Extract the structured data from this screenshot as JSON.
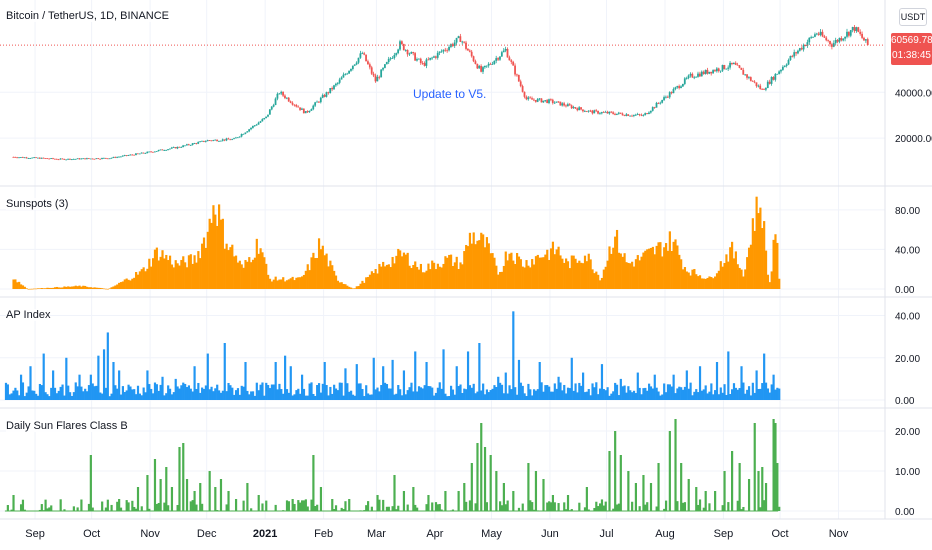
{
  "header": {
    "symbol_title": "Bitcoin / TetherUS, 1D, BINANCE"
  },
  "currency_button": "USDT",
  "price_tag": {
    "last": "60569.78",
    "countdown": "01:38:45"
  },
  "annotation": "Update to V5.",
  "colors": {
    "up": "#26a69a",
    "down": "#ef5350",
    "sunspots": "#ff9800",
    "ap": "#2196f3",
    "flares": "#4caf50",
    "grid": "#f0f3fa",
    "sep": "#e0e3eb",
    "annot": "#2962ff"
  },
  "chart_data": [
    {
      "type": "candlestick",
      "title": "Bitcoin / TetherUS, 1D, BINANCE",
      "ylim": [
        0,
        75000
      ],
      "y_ticks": [
        "40000.00",
        "20000.00"
      ],
      "last_price": 60569.78,
      "close_keypoints": [
        [
          "2020-08-20",
          11800
        ],
        [
          "2020-09-15",
          10800
        ],
        [
          "2020-10-10",
          11300
        ],
        [
          "2020-10-28",
          13500
        ],
        [
          "2020-11-15",
          16000
        ],
        [
          "2020-12-01",
          19000
        ],
        [
          "2020-12-15",
          19500
        ],
        [
          "2021-01-01",
          29000
        ],
        [
          "2021-01-08",
          40000
        ],
        [
          "2021-01-22",
          31000
        ],
        [
          "2021-02-08",
          44000
        ],
        [
          "2021-02-21",
          57000
        ],
        [
          "2021-02-28",
          45000
        ],
        [
          "2021-03-13",
          61000
        ],
        [
          "2021-03-25",
          52000
        ],
        [
          "2021-04-14",
          63500
        ],
        [
          "2021-04-25",
          49000
        ],
        [
          "2021-05-08",
          58500
        ],
        [
          "2021-05-19",
          37000
        ],
        [
          "2021-06-01",
          36000
        ],
        [
          "2021-06-22",
          31500
        ],
        [
          "2021-07-20",
          29800
        ],
        [
          "2021-08-14",
          47000
        ],
        [
          "2021-09-06",
          52000
        ],
        [
          "2021-09-21",
          41000
        ],
        [
          "2021-10-06",
          55000
        ],
        [
          "2021-10-20",
          66000
        ],
        [
          "2021-10-28",
          61000
        ],
        [
          "2021-11-09",
          68000
        ],
        [
          "2021-11-16",
          60570
        ]
      ]
    },
    {
      "type": "bar",
      "title": "Sunspots (3)",
      "ylim": [
        0,
        95
      ],
      "y_ticks": [
        "80.00",
        "40.00",
        "0.00"
      ],
      "keypoints": [
        [
          "2020-08-20",
          12
        ],
        [
          "2020-08-28",
          0
        ],
        [
          "2020-09-25",
          3
        ],
        [
          "2020-10-10",
          0
        ],
        [
          "2020-10-28",
          18
        ],
        [
          "2020-11-05",
          38
        ],
        [
          "2020-11-15",
          25
        ],
        [
          "2020-11-25",
          30
        ],
        [
          "2020-12-02",
          60
        ],
        [
          "2020-12-05",
          92
        ],
        [
          "2020-12-10",
          55
        ],
        [
          "2020-12-20",
          20
        ],
        [
          "2020-12-29",
          48
        ],
        [
          "2021-01-03",
          10
        ],
        [
          "2021-01-20",
          10
        ],
        [
          "2021-01-25",
          25
        ],
        [
          "2021-01-30",
          45
        ],
        [
          "2021-02-08",
          10
        ],
        [
          "2021-02-17",
          0
        ],
        [
          "2021-02-25",
          12
        ],
        [
          "2021-03-05",
          25
        ],
        [
          "2021-03-15",
          35
        ],
        [
          "2021-03-25",
          20
        ],
        [
          "2021-04-08",
          30
        ],
        [
          "2021-04-15",
          25
        ],
        [
          "2021-04-20",
          55
        ],
        [
          "2021-04-28",
          45
        ],
        [
          "2021-05-05",
          15
        ],
        [
          "2021-05-10",
          40
        ],
        [
          "2021-05-18",
          25
        ],
        [
          "2021-05-28",
          35
        ],
        [
          "2021-06-05",
          40
        ],
        [
          "2021-06-10",
          25
        ],
        [
          "2021-06-20",
          35
        ],
        [
          "2021-06-28",
          10
        ],
        [
          "2021-07-05",
          55
        ],
        [
          "2021-07-12",
          25
        ],
        [
          "2021-07-18",
          30
        ],
        [
          "2021-07-28",
          40
        ],
        [
          "2021-08-05",
          50
        ],
        [
          "2021-08-12",
          20
        ],
        [
          "2021-08-25",
          10
        ],
        [
          "2021-09-05",
          40
        ],
        [
          "2021-09-12",
          15
        ],
        [
          "2021-09-17",
          70
        ],
        [
          "2021-09-21",
          90
        ],
        [
          "2021-09-24",
          25
        ],
        [
          "2021-09-26",
          0
        ],
        [
          "2021-09-28",
          75
        ],
        [
          "2021-10-01",
          0
        ]
      ]
    },
    {
      "type": "bar",
      "title": "AP Index",
      "ylim": [
        0,
        45
      ],
      "y_ticks": [
        "40.00",
        "20.00",
        "0.00"
      ],
      "base_level": 6,
      "spikes": [
        [
          "2020-08-24",
          12
        ],
        [
          "2020-08-29",
          16
        ],
        [
          "2020-09-05",
          22
        ],
        [
          "2020-09-10",
          14
        ],
        [
          "2020-09-17",
          20
        ],
        [
          "2020-09-24",
          12
        ],
        [
          "2020-09-30",
          12
        ],
        [
          "2020-10-04",
          21
        ],
        [
          "2020-10-07",
          24
        ],
        [
          "2020-10-09",
          32
        ],
        [
          "2020-10-12",
          18
        ],
        [
          "2020-10-15",
          14
        ],
        [
          "2020-10-30",
          14
        ],
        [
          "2020-11-07",
          11
        ],
        [
          "2020-11-14",
          10
        ],
        [
          "2020-11-24",
          16
        ],
        [
          "2020-12-01",
          22
        ],
        [
          "2020-12-10",
          27
        ],
        [
          "2020-12-21",
          18
        ],
        [
          "2021-01-06",
          18
        ],
        [
          "2021-01-11",
          21
        ],
        [
          "2021-01-14",
          16
        ],
        [
          "2021-01-20",
          12
        ],
        [
          "2021-02-01",
          18
        ],
        [
          "2021-02-12",
          15
        ],
        [
          "2021-02-18",
          17
        ],
        [
          "2021-02-27",
          20
        ],
        [
          "2021-03-04",
          16
        ],
        [
          "2021-03-09",
          19
        ],
        [
          "2021-03-15",
          14
        ],
        [
          "2021-03-21",
          23
        ],
        [
          "2021-03-27",
          18
        ],
        [
          "2021-04-05",
          24
        ],
        [
          "2021-04-12",
          16
        ],
        [
          "2021-04-18",
          23
        ],
        [
          "2021-04-24",
          27
        ],
        [
          "2021-05-04",
          11
        ],
        [
          "2021-05-08",
          13
        ],
        [
          "2021-05-12",
          42
        ],
        [
          "2021-05-15",
          19
        ],
        [
          "2021-05-26",
          18
        ],
        [
          "2021-06-05",
          11
        ],
        [
          "2021-06-12",
          20
        ],
        [
          "2021-06-18",
          13
        ],
        [
          "2021-06-28",
          17
        ],
        [
          "2021-07-08",
          10
        ],
        [
          "2021-07-17",
          13
        ],
        [
          "2021-07-26",
          12
        ],
        [
          "2021-08-05",
          12
        ],
        [
          "2021-08-12",
          14
        ],
        [
          "2021-08-19",
          16
        ],
        [
          "2021-08-28",
          18
        ],
        [
          "2021-09-03",
          23
        ],
        [
          "2021-09-10",
          16
        ],
        [
          "2021-09-18",
          14
        ],
        [
          "2021-09-22",
          22
        ],
        [
          "2021-09-27",
          12
        ]
      ]
    },
    {
      "type": "bar",
      "title": "Daily Sun Flares Class B",
      "ylim": [
        0,
        24
      ],
      "y_ticks": [
        "20.00",
        "10.00",
        "0.00"
      ],
      "spikes": [
        [
          "2020-08-20",
          4
        ],
        [
          "2020-09-30",
          14
        ],
        [
          "2020-10-15",
          3
        ],
        [
          "2020-10-25",
          6
        ],
        [
          "2020-10-30",
          9
        ],
        [
          "2020-11-03",
          13
        ],
        [
          "2020-11-06",
          8
        ],
        [
          "2020-11-09",
          11
        ],
        [
          "2020-11-12",
          6
        ],
        [
          "2020-11-16",
          16
        ],
        [
          "2020-11-18",
          17
        ],
        [
          "2020-11-20",
          8
        ],
        [
          "2020-11-24",
          5
        ],
        [
          "2020-11-27",
          7
        ],
        [
          "2020-12-02",
          10
        ],
        [
          "2020-12-05",
          6
        ],
        [
          "2020-12-08",
          8
        ],
        [
          "2020-12-12",
          5
        ],
        [
          "2020-12-16",
          3
        ],
        [
          "2020-12-22",
          7
        ],
        [
          "2020-12-28",
          4
        ],
        [
          "2021-01-15",
          3
        ],
        [
          "2021-01-26",
          14
        ],
        [
          "2021-01-30",
          6
        ],
        [
          "2021-02-05",
          3
        ],
        [
          "2021-02-14",
          3
        ],
        [
          "2021-03-01",
          4
        ],
        [
          "2021-03-10",
          9
        ],
        [
          "2021-03-15",
          5
        ],
        [
          "2021-03-20",
          6
        ],
        [
          "2021-03-28",
          4
        ],
        [
          "2021-04-06",
          5
        ],
        [
          "2021-04-13",
          5
        ],
        [
          "2021-04-16",
          7
        ],
        [
          "2021-04-20",
          12
        ],
        [
          "2021-04-23",
          17
        ],
        [
          "2021-04-25",
          22
        ],
        [
          "2021-04-27",
          16
        ],
        [
          "2021-04-30",
          14
        ],
        [
          "2021-05-03",
          10
        ],
        [
          "2021-05-07",
          7
        ],
        [
          "2021-05-12",
          5
        ],
        [
          "2021-05-20",
          12
        ],
        [
          "2021-05-24",
          10
        ],
        [
          "2021-05-28",
          8
        ],
        [
          "2021-06-02",
          4
        ],
        [
          "2021-06-10",
          4
        ],
        [
          "2021-06-20",
          6
        ],
        [
          "2021-07-02",
          15
        ],
        [
          "2021-07-05",
          20
        ],
        [
          "2021-07-08",
          14
        ],
        [
          "2021-07-12",
          10
        ],
        [
          "2021-07-16",
          7
        ],
        [
          "2021-07-20",
          9
        ],
        [
          "2021-07-24",
          7
        ],
        [
          "2021-07-28",
          12
        ],
        [
          "2021-08-03",
          20
        ],
        [
          "2021-08-06",
          23
        ],
        [
          "2021-08-09",
          12
        ],
        [
          "2021-08-13",
          8
        ],
        [
          "2021-08-17",
          6
        ],
        [
          "2021-08-22",
          5
        ],
        [
          "2021-08-27",
          5
        ],
        [
          "2021-09-01",
          10
        ],
        [
          "2021-09-05",
          15
        ],
        [
          "2021-09-09",
          12
        ],
        [
          "2021-09-14",
          8
        ],
        [
          "2021-09-17",
          22
        ],
        [
          "2021-09-19",
          10
        ],
        [
          "2021-09-21",
          11
        ],
        [
          "2021-09-23",
          7
        ],
        [
          "2021-09-27",
          23
        ],
        [
          "2021-09-28",
          22
        ],
        [
          "2021-09-29",
          12
        ]
      ]
    }
  ],
  "x_axis": {
    "labels": [
      "Sep",
      "Oct",
      "Nov",
      "Dec",
      "2021",
      "Feb",
      "Mar",
      "Apr",
      "May",
      "Jun",
      "Jul",
      "Aug",
      "Sep",
      "Oct",
      "Nov"
    ],
    "label_dates": [
      "2020-09-01",
      "2020-10-01",
      "2020-11-01",
      "2020-12-01",
      "2021-01-01",
      "2021-02-01",
      "2021-03-01",
      "2021-04-01",
      "2021-05-01",
      "2021-06-01",
      "2021-07-01",
      "2021-08-01",
      "2021-09-01",
      "2021-10-01",
      "2021-11-01"
    ],
    "range": [
      "2020-08-15",
      "2021-11-23"
    ]
  }
}
